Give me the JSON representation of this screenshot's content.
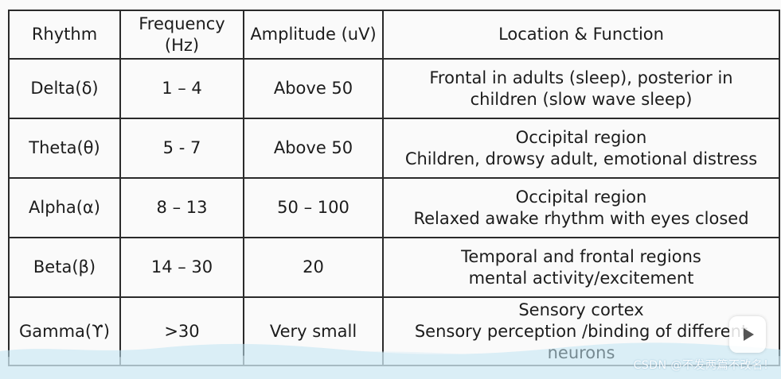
{
  "table": {
    "headers": [
      [
        "Rhythm"
      ],
      [
        "Frequency",
        "(Hz)"
      ],
      [
        "Amplitude (uV)"
      ],
      [
        "Location & Function"
      ]
    ],
    "rows": [
      {
        "rhythm": "Delta(δ)",
        "frequency": "1 – 4",
        "amplitude": "Above 50",
        "location": [
          "Frontal in adults (sleep), posterior in",
          "children (slow wave sleep)"
        ]
      },
      {
        "rhythm": "Theta(θ)",
        "frequency": "5 - 7",
        "amplitude": "Above 50",
        "location": [
          "Occipital region",
          "Children, drowsy adult, emotional distress"
        ]
      },
      {
        "rhythm": "Alpha(α)",
        "frequency": "8 – 13",
        "amplitude": "50 – 100",
        "location": [
          "Occipital region",
          "Relaxed awake rhythm with eyes closed"
        ]
      },
      {
        "rhythm": "Beta(β)",
        "frequency": "14 – 30",
        "amplitude": "20",
        "location": [
          "Temporal and frontal regions",
          "mental activity/excitement"
        ]
      },
      {
        "rhythm": "Gamma(ϒ)",
        "frequency": ">30",
        "amplitude": "Very small",
        "location": [
          "Sensory cortex",
          "Sensory perception /binding of different",
          "neurons"
        ]
      }
    ]
  },
  "watermark": "CSDN @不发两篇不改名！",
  "colors": {
    "border": "#2a2a2a",
    "text": "#1c1c1c",
    "wave": "#bfe3f3"
  },
  "icons": {
    "play": "play-icon"
  }
}
